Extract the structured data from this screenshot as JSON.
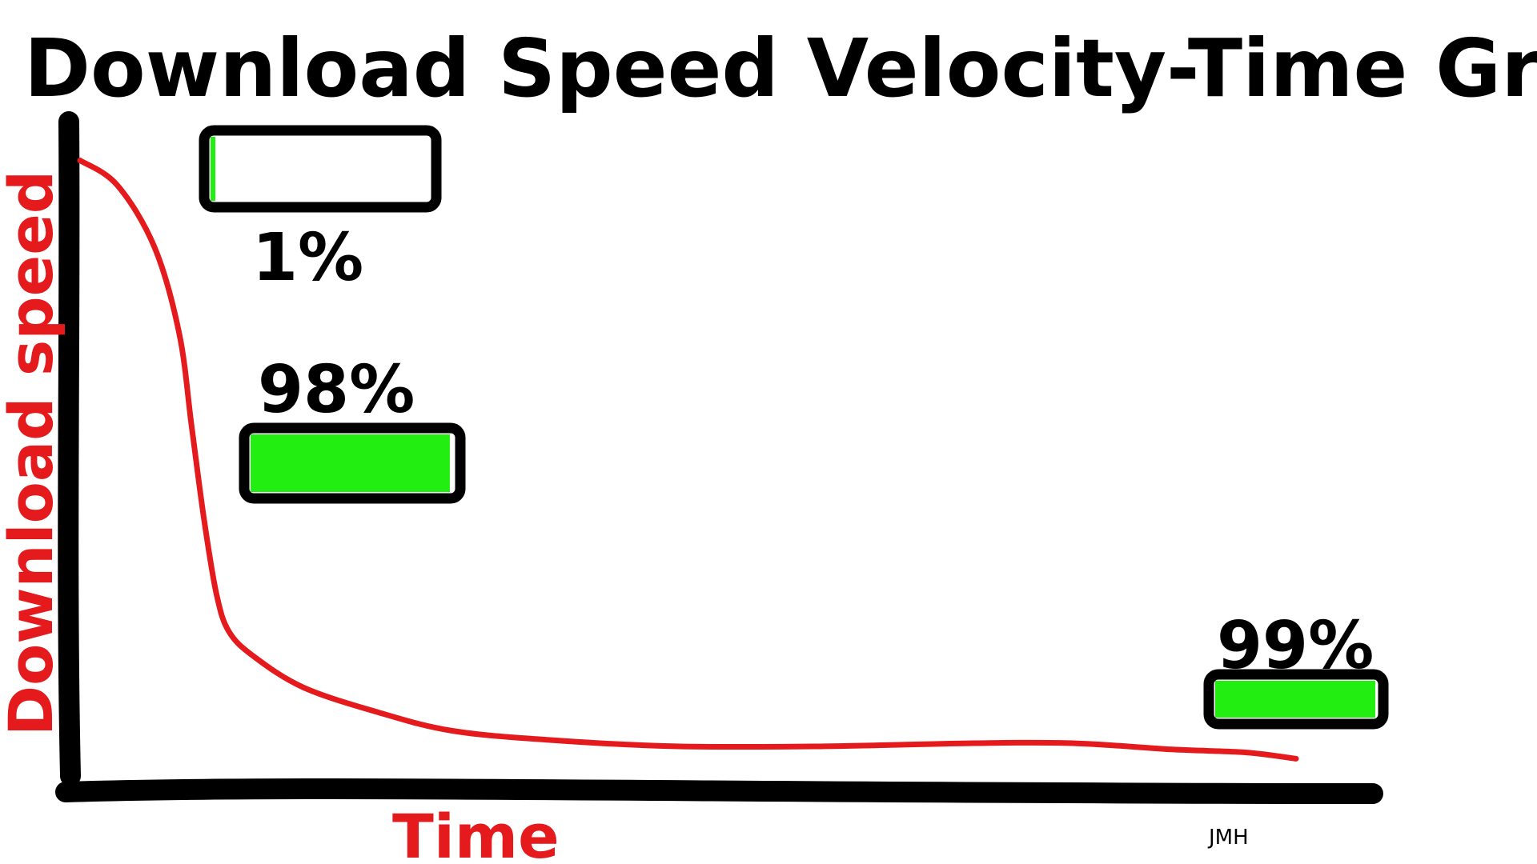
{
  "chart_data": {
    "type": "line",
    "title": "Download Speed Velocity-Time Graph",
    "xlabel": "Time",
    "ylabel": "Download speed",
    "xlim": [
      0,
      100
    ],
    "ylim": [
      0,
      100
    ],
    "grid": false,
    "series": [
      {
        "x": [
          0,
          3,
          6,
          8,
          9,
          10,
          11,
          12,
          14,
          18,
          24,
          30,
          38,
          48,
          60,
          72,
          80,
          88,
          94,
          98
        ],
        "values": [
          98,
          94,
          84,
          70,
          55,
          40,
          28,
          22,
          18,
          13,
          9,
          6,
          4.5,
          3.5,
          3.5,
          4,
          4,
          3,
          2.5,
          1.5
        ],
        "color": "#e41a1c"
      }
    ],
    "annotations": [
      {
        "label": "1%",
        "progress": 0.01,
        "label_position": "below"
      },
      {
        "label": "98%",
        "progress": 0.98,
        "label_position": "above"
      },
      {
        "label": "99%",
        "progress": 0.99,
        "label_position": "above"
      }
    ],
    "signature": "JMH",
    "colors": {
      "axis": "#000000",
      "curve": "#e41a1c",
      "progress_fill": "#22ee11",
      "axis_label": "#e41a1c"
    }
  }
}
